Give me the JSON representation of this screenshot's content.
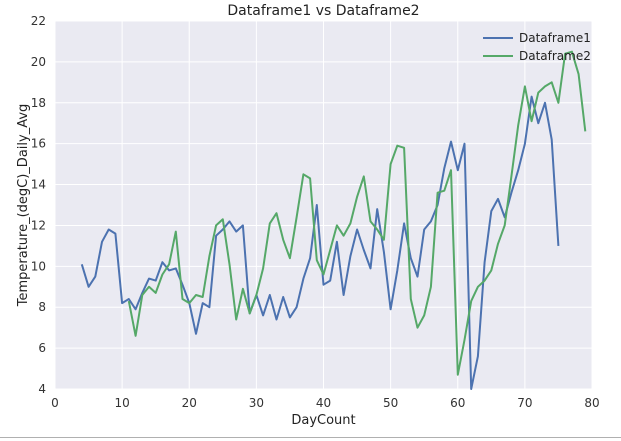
{
  "chart_data": {
    "type": "line",
    "title": "Dataframe1 vs Dataframe2",
    "xlabel": "DayCount",
    "ylabel": "Temperature_(degC)_Daily_Avg",
    "xlim": [
      0,
      80
    ],
    "ylim": [
      4,
      22
    ],
    "xticks": [
      "0",
      "10",
      "20",
      "30",
      "40",
      "50",
      "60",
      "70",
      "80"
    ],
    "yticks": [
      "4",
      "6",
      "8",
      "10",
      "12",
      "14",
      "16",
      "18",
      "20",
      "22"
    ],
    "grid": true,
    "legend_position": "top-right",
    "background": "#eaeaf2",
    "series": [
      {
        "name": "Dataframe1",
        "color": "#4c72b0",
        "x": [
          4,
          5,
          6,
          7,
          8,
          9,
          10,
          11,
          12,
          13,
          14,
          15,
          16,
          17,
          18,
          19,
          20,
          21,
          22,
          23,
          24,
          25,
          26,
          27,
          28,
          29,
          30,
          31,
          32,
          33,
          34,
          35,
          36,
          37,
          38,
          39,
          40,
          41,
          42,
          43,
          44,
          45,
          46,
          47,
          48,
          49,
          50,
          51,
          52,
          53,
          54,
          55,
          56,
          57,
          58,
          59,
          60,
          61,
          62,
          63,
          64,
          65,
          66,
          67,
          68,
          69,
          70,
          71,
          72,
          73,
          74,
          75
        ],
        "values": [
          10.1,
          9.0,
          9.5,
          11.2,
          11.8,
          11.6,
          8.2,
          8.4,
          7.9,
          8.7,
          9.4,
          9.3,
          10.2,
          9.8,
          9.9,
          9.1,
          8.2,
          6.7,
          8.2,
          8.0,
          11.5,
          11.8,
          12.2,
          11.7,
          12.0,
          7.7,
          8.6,
          7.6,
          8.6,
          7.4,
          8.5,
          7.5,
          8.0,
          9.4,
          10.4,
          13.0,
          9.1,
          9.3,
          11.2,
          8.6,
          10.5,
          11.8,
          10.8,
          9.9,
          12.8,
          10.7,
          7.9,
          9.8,
          12.1,
          10.4,
          9.5,
          11.8,
          12.2,
          13.0,
          14.8,
          16.1,
          14.7,
          16.0,
          4.0,
          5.6,
          10.2,
          12.7,
          13.3,
          12.4,
          13.6,
          14.7,
          16.0,
          18.3,
          17.0,
          18.0,
          16.2,
          11.0
        ]
      },
      {
        "name": "Dataframe2",
        "color": "#55a868",
        "x": [
          11,
          12,
          13,
          14,
          15,
          16,
          17,
          18,
          19,
          20,
          21,
          22,
          23,
          24,
          25,
          26,
          27,
          28,
          29,
          30,
          31,
          32,
          33,
          34,
          35,
          36,
          37,
          38,
          39,
          40,
          41,
          42,
          43,
          44,
          45,
          46,
          47,
          48,
          49,
          50,
          51,
          52,
          53,
          54,
          55,
          56,
          57,
          58,
          59,
          60,
          61,
          62,
          63,
          64,
          65,
          66,
          67,
          68,
          69,
          70,
          71,
          72,
          73,
          74,
          75,
          76,
          77,
          78,
          79
        ],
        "values": [
          8.3,
          6.6,
          8.6,
          9.0,
          8.7,
          9.6,
          10.1,
          11.7,
          8.4,
          8.2,
          8.6,
          8.5,
          10.5,
          12.0,
          12.3,
          10.1,
          7.4,
          8.9,
          7.7,
          8.6,
          9.9,
          12.1,
          12.6,
          11.3,
          10.4,
          12.4,
          14.5,
          14.3,
          10.3,
          9.6,
          10.8,
          12.0,
          11.5,
          12.1,
          13.4,
          14.4,
          12.2,
          11.8,
          11.3,
          15.0,
          15.9,
          15.8,
          8.4,
          7.0,
          7.6,
          9.0,
          13.6,
          13.7,
          14.7,
          4.7,
          6.4,
          8.3,
          9.0,
          9.3,
          9.8,
          11.1,
          12.0,
          14.4,
          16.9,
          18.8,
          17.1,
          18.5,
          18.8,
          19.0,
          18.0,
          20.4,
          20.5,
          19.4,
          16.6
        ]
      }
    ]
  }
}
